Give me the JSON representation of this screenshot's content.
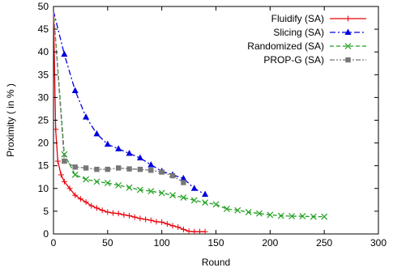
{
  "chart_data": {
    "type": "line",
    "xlabel": "Round",
    "ylabel": "Proximity ( in % )",
    "xlim": [
      0,
      300
    ],
    "ylim": [
      0,
      50
    ],
    "xticks": [
      0,
      50,
      100,
      150,
      200,
      250,
      300
    ],
    "yticks": [
      0,
      5,
      10,
      15,
      20,
      25,
      30,
      35,
      40,
      45,
      50
    ],
    "grid": false,
    "legend_position": "top-right",
    "series": [
      {
        "name": "Fluidify (SA)",
        "color": "#e8000b",
        "marker": "plus",
        "dash": "solid",
        "x": [
          0,
          2,
          4,
          7,
          10,
          15,
          20,
          25,
          30,
          35,
          40,
          45,
          50,
          55,
          60,
          65,
          70,
          75,
          80,
          85,
          90,
          95,
          100,
          105,
          110,
          115,
          120,
          125,
          130,
          135,
          140
        ],
        "y": [
          49,
          23,
          16,
          13,
          11.5,
          10,
          8.5,
          7.7,
          7,
          6.2,
          5.7,
          5.2,
          4.8,
          4.6,
          4.5,
          4.2,
          4.0,
          3.7,
          3.4,
          3.2,
          3.0,
          2.7,
          2.6,
          2.2,
          1.8,
          1.5,
          1.0,
          0.6,
          0.5,
          0.5,
          0.5
        ]
      },
      {
        "name": "Slicing (SA)",
        "color": "#0000e0",
        "marker": "triangle",
        "dash": "dashdot",
        "x": [
          0,
          10,
          20,
          30,
          40,
          50,
          60,
          70,
          80,
          90,
          100,
          110,
          120,
          130,
          140
        ],
        "y": [
          49,
          39.5,
          31.5,
          25.7,
          22,
          19.7,
          18.7,
          17.7,
          16.7,
          15.2,
          13.8,
          13,
          12.2,
          10,
          8.7
        ]
      },
      {
        "name": "Randomized (SA)",
        "color": "#22a022",
        "marker": "cross",
        "dash": "dashed",
        "x": [
          0,
          10,
          20,
          30,
          40,
          50,
          60,
          70,
          80,
          90,
          100,
          110,
          120,
          130,
          140,
          150,
          160,
          170,
          180,
          190,
          200,
          210,
          220,
          230,
          240,
          250
        ],
        "y": [
          49,
          17.5,
          13,
          12,
          11.5,
          11.2,
          10.7,
          10.2,
          9.7,
          9.4,
          9.0,
          8.5,
          8.0,
          7.4,
          6.9,
          6.5,
          5.5,
          5.2,
          4.8,
          4.5,
          4.2,
          4.0,
          3.9,
          3.9,
          3.8,
          3.8
        ]
      },
      {
        "name": "PROP-G (SA)",
        "color": "#777777",
        "marker": "square",
        "dash": "dashdotdot",
        "x": [
          0,
          10,
          20,
          30,
          40,
          50,
          60,
          70,
          80,
          90,
          100,
          110,
          120
        ],
        "y": [
          49,
          16,
          14.7,
          14.5,
          14.2,
          14.2,
          14.5,
          14.3,
          14.2,
          14.0,
          13.6,
          12.8,
          11.3
        ]
      }
    ]
  }
}
